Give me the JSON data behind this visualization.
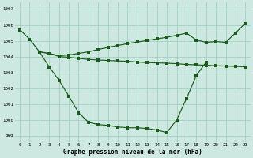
{
  "line_curved_x": [
    0,
    1,
    2,
    3,
    4,
    5,
    6,
    7,
    8,
    9,
    10,
    11,
    12,
    13,
    14,
    15,
    16,
    17,
    18,
    19
  ],
  "line_curved_y": [
    1005.7,
    1005.1,
    1004.3,
    1003.35,
    1002.5,
    1001.5,
    1000.45,
    999.85,
    999.7,
    999.65,
    999.55,
    999.5,
    999.5,
    999.45,
    999.35,
    999.2,
    1000.0,
    1001.35,
    1002.8,
    1003.65
  ],
  "line_upper_x": [
    2,
    3,
    4,
    5,
    6,
    7,
    8,
    9,
    10,
    11,
    12,
    13,
    14,
    15,
    16,
    17,
    18,
    19,
    20,
    21,
    22,
    23
  ],
  "line_upper_y": [
    1004.3,
    1004.2,
    1004.05,
    1004.1,
    1004.2,
    1004.3,
    1004.45,
    1004.58,
    1004.7,
    1004.82,
    1004.92,
    1005.02,
    1005.12,
    1005.22,
    1005.35,
    1005.48,
    1005.05,
    1004.9,
    1004.95,
    1004.9,
    1005.5,
    1006.1
  ],
  "line_flat_x": [
    2,
    3,
    4,
    5,
    6,
    7,
    8,
    9,
    10,
    11,
    12,
    13,
    14,
    15,
    16,
    17,
    18,
    19,
    20,
    21,
    22,
    23
  ],
  "line_flat_y": [
    1004.3,
    1004.2,
    1004.0,
    1003.95,
    1003.88,
    1003.82,
    1003.78,
    1003.75,
    1003.72,
    1003.7,
    1003.65,
    1003.62,
    1003.6,
    1003.58,
    1003.55,
    1003.5,
    1003.48,
    1003.45,
    1003.42,
    1003.4,
    1003.38,
    1003.35
  ],
  "ylim": [
    998.6,
    1007.4
  ],
  "xlim": [
    -0.5,
    23.5
  ],
  "yticks": [
    999,
    1000,
    1001,
    1002,
    1003,
    1004,
    1005,
    1006,
    1007
  ],
  "xticks": [
    0,
    1,
    2,
    3,
    4,
    5,
    6,
    7,
    8,
    9,
    10,
    11,
    12,
    13,
    14,
    15,
    16,
    17,
    18,
    19,
    20,
    21,
    22,
    23
  ],
  "xlabel": "Graphe pression niveau de la mer (hPa)",
  "bg_color": "#cce8e0",
  "line_color": "#1a5c1a",
  "grid_color": "#99ccbb"
}
